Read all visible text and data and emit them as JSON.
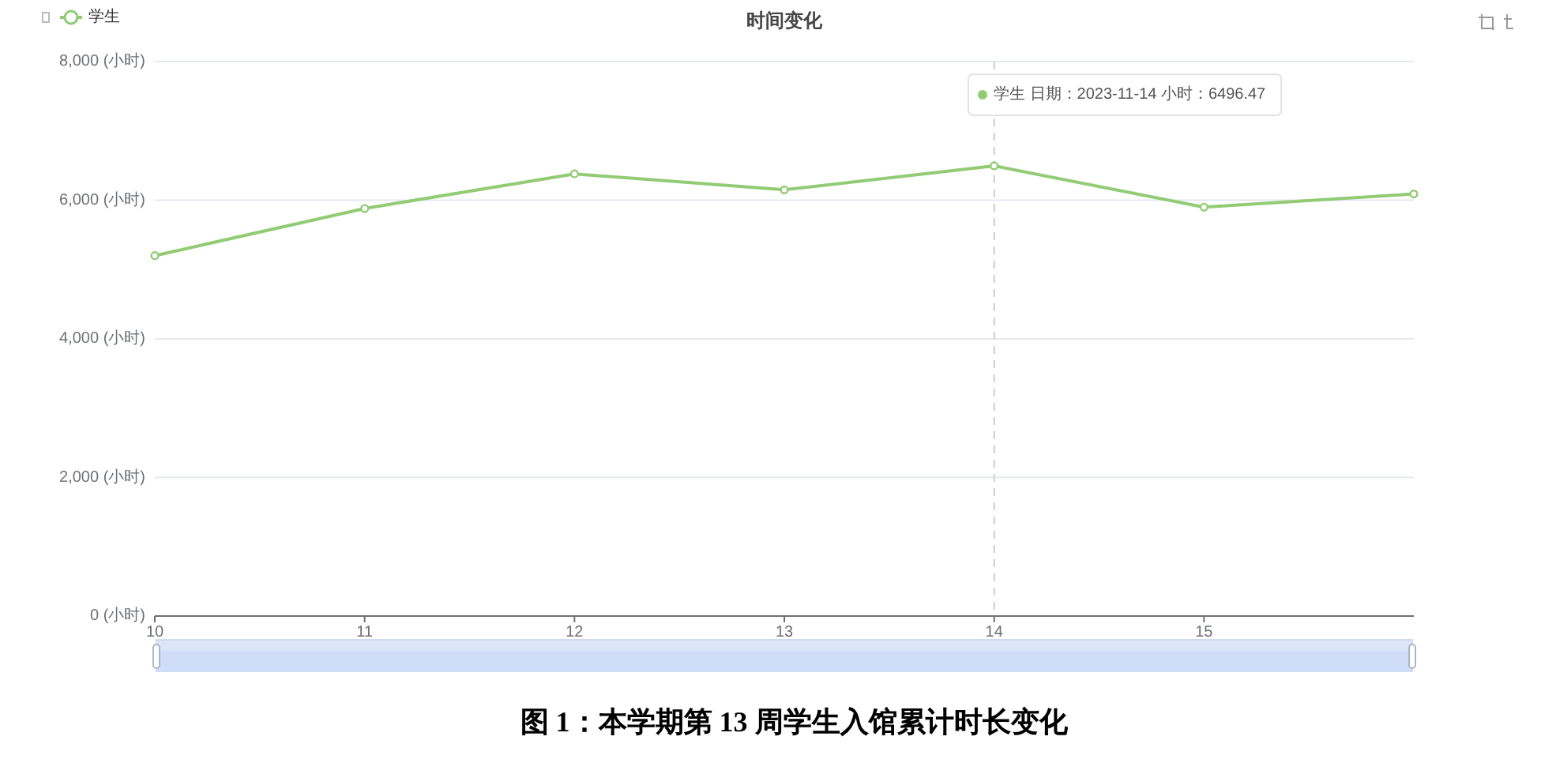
{
  "chart_data": {
    "type": "line",
    "title": "时间变化",
    "x": [
      10,
      11,
      12,
      13,
      14,
      15,
      16
    ],
    "xlim": [
      10,
      16
    ],
    "xticks": [
      10,
      11,
      12,
      13,
      14,
      15
    ],
    "ylim": [
      0,
      8000
    ],
    "yticks": [
      {
        "value": 0,
        "label": "0 (小时)"
      },
      {
        "value": 2000,
        "label": "2,000 (小时)"
      },
      {
        "value": 4000,
        "label": "4,000 (小时)"
      },
      {
        "value": 6000,
        "label": "6,000 (小时)"
      },
      {
        "value": 8000,
        "label": "8,000 (小时)"
      }
    ],
    "series": [
      {
        "name": "学生",
        "color": "#91cc75",
        "values": [
          5200,
          5880,
          6380,
          6150,
          6496.47,
          5900,
          6090
        ]
      }
    ],
    "grid": "y",
    "legend": "top left",
    "marker": "circle",
    "line_style": "solid",
    "ref_lines": [
      {
        "axis": "x",
        "value": 14,
        "color": "#cccccc",
        "line_style": "dashed"
      }
    ],
    "annotations": [
      "学生 日期：2023-11-14 小时：6496.47",
      "图 1：本学期第 13 周学生入馆累计时长变化"
    ]
  }
}
